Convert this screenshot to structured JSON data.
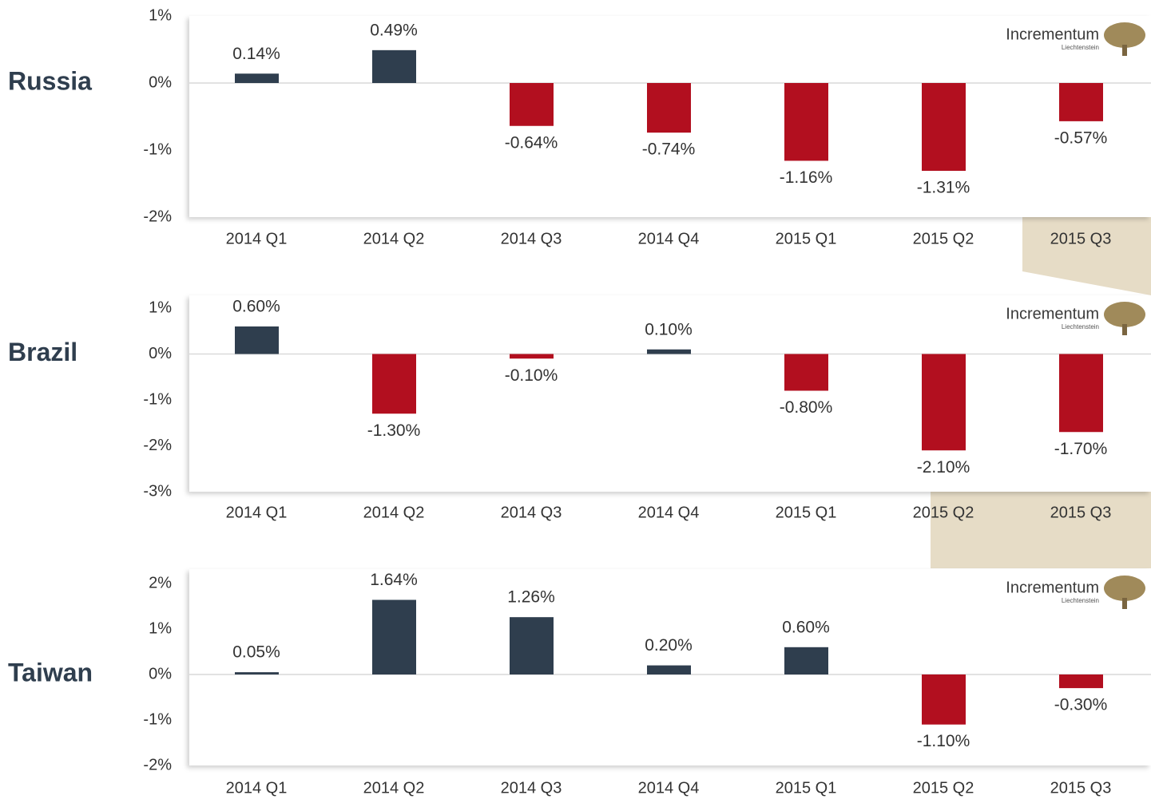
{
  "logo": {
    "name": "Incrementum",
    "sub": "Liechtenstein"
  },
  "chart_data": [
    {
      "type": "bar",
      "title": "Russia",
      "categories": [
        "2014 Q1",
        "2014 Q2",
        "2014 Q3",
        "2014 Q4",
        "2015 Q1",
        "2015 Q2",
        "2015 Q3"
      ],
      "values": [
        0.14,
        0.49,
        -0.64,
        -0.74,
        -1.16,
        -1.31,
        -0.57
      ],
      "value_labels": [
        "0.14%",
        "0.49%",
        "-0.64%",
        "-0.74%",
        "-1.16%",
        "-1.31%",
        "-0.57%"
      ],
      "ylim": [
        -2,
        1
      ],
      "yticks": [
        {
          "value": -2,
          "label": "-2%"
        },
        {
          "value": -1,
          "label": "-1%"
        },
        {
          "value": 0,
          "label": "0%"
        },
        {
          "value": 1,
          "label": "1%"
        }
      ],
      "positive_color": "#2f3e4e",
      "negative_color": "#b20f1f"
    },
    {
      "type": "bar",
      "title": "Brazil",
      "categories": [
        "2014 Q1",
        "2014 Q2",
        "2014 Q3",
        "2014 Q4",
        "2015 Q1",
        "2015 Q2",
        "2015 Q3"
      ],
      "values": [
        0.6,
        -1.3,
        -0.1,
        0.1,
        -0.8,
        -2.1,
        -1.7
      ],
      "value_labels": [
        "0.60%",
        "-1.30%",
        "-0.10%",
        "0.10%",
        "-0.80%",
        "-2.10%",
        "-1.70%"
      ],
      "ylim": [
        -3,
        1
      ],
      "yticks": [
        {
          "value": -3,
          "label": "-3%"
        },
        {
          "value": -2,
          "label": "-2%"
        },
        {
          "value": -1,
          "label": "-1%"
        },
        {
          "value": 0,
          "label": "0%"
        },
        {
          "value": 1,
          "label": "1%"
        }
      ],
      "positive_color": "#2f3e4e",
      "negative_color": "#b20f1f"
    },
    {
      "type": "bar",
      "title": "Taiwan",
      "categories": [
        "2014 Q1",
        "2014 Q2",
        "2014 Q3",
        "2014 Q4",
        "2015 Q1",
        "2015 Q2",
        "2015 Q3"
      ],
      "values": [
        0.05,
        1.64,
        1.26,
        0.2,
        0.6,
        -1.1,
        -0.3
      ],
      "value_labels": [
        "0.05%",
        "1.64%",
        "1.26%",
        "0.20%",
        "0.60%",
        "-1.10%",
        "-0.30%"
      ],
      "ylim": [
        -2,
        2
      ],
      "yticks": [
        {
          "value": -2,
          "label": "-2%"
        },
        {
          "value": -1,
          "label": "-1%"
        },
        {
          "value": 0,
          "label": "0%"
        },
        {
          "value": 1,
          "label": "1%"
        },
        {
          "value": 2,
          "label": "2%"
        }
      ],
      "positive_color": "#2f3e4e",
      "negative_color": "#b20f1f"
    }
  ]
}
